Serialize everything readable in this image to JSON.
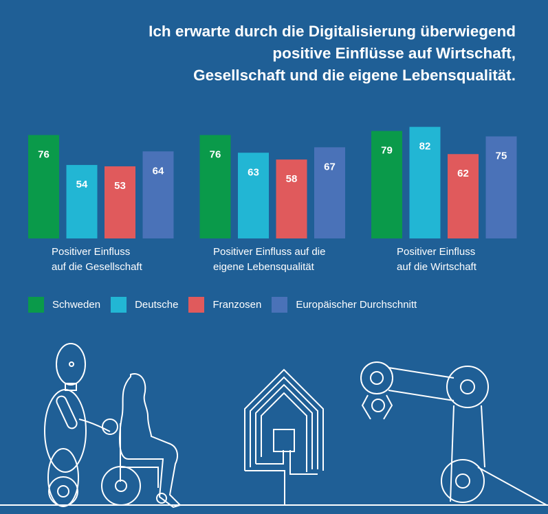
{
  "chart_data": {
    "type": "bar",
    "title": [
      "Ich erwarte durch die Digitalisierung überwiegend",
      "positive Einflüsse auf Wirtschaft,",
      "Gesellschaft und die eigene Lebensqualität."
    ],
    "categories": [
      [
        "Positiver Einfluss",
        "auf die Gesellschaft"
      ],
      [
        "Positiver Einfluss auf die",
        "eigene Lebensqualität"
      ],
      [
        "Positiver Einfluss",
        "auf die Wirtschaft"
      ]
    ],
    "series": [
      {
        "name": "Schweden",
        "color": "#0a9a4a",
        "values": [
          76,
          76,
          79
        ]
      },
      {
        "name": "Deutsche",
        "color": "#22b6d4",
        "values": [
          54,
          63,
          82
        ]
      },
      {
        "name": "Franzosen",
        "color": "#e05a5c",
        "values": [
          53,
          58,
          62
        ]
      },
      {
        "name": "Europäischer Durchschnitt",
        "color": "#4a72b8",
        "values": [
          64,
          67,
          75
        ]
      }
    ],
    "data_labels": true,
    "grid": false,
    "legend_placement": "bottom-left",
    "background": "#1f5f96"
  }
}
